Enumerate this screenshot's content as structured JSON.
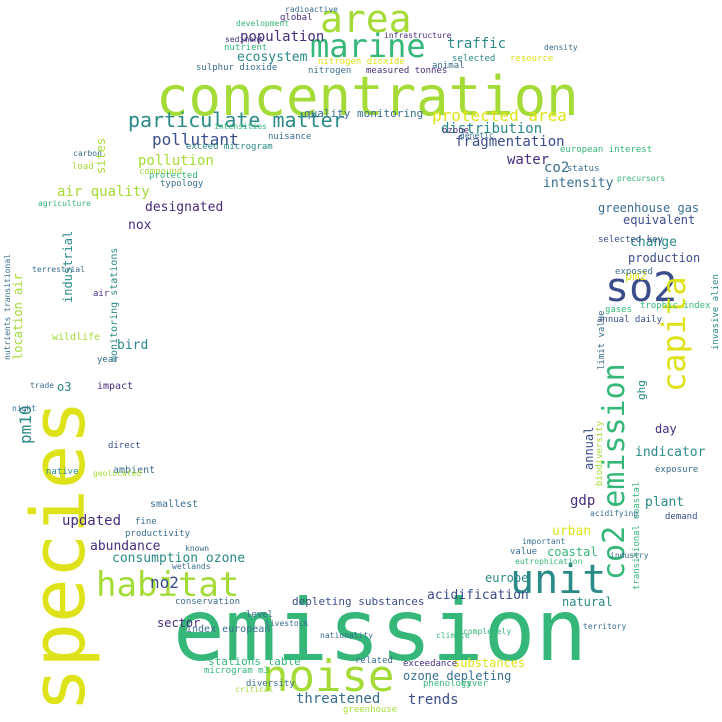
{
  "palette": {
    "dark_blue": "#3b4d8a",
    "blue": "#3a6e8f",
    "teal": "#2a8a87",
    "green": "#35b779",
    "lime": "#a5db36",
    "yellow": "#dde318",
    "purple": "#472d7b",
    "background": "#ffffff"
  },
  "words": {
    "emission": "emission",
    "concentration": "concentration",
    "species": "species",
    "marine": "marine",
    "area": "area",
    "noise": "noise",
    "unit": "unit",
    "habitat": "habitat",
    "so2": "so2",
    "co2_emission": "co2 emission",
    "capita": "capita",
    "particulate_matter": "particulate matter",
    "protected_area": "protected area",
    "population": "population",
    "traffic": "traffic",
    "ecosystem": "ecosystem",
    "pollutant": "pollutant",
    "pollution": "pollution",
    "distribution": "distribution",
    "fragmentation": "fragmentation",
    "water": "water",
    "co2": "co2",
    "intensity": "intensity",
    "air_quality": "air quality",
    "designated": "designated",
    "greenhouse_gas": "greenhouse gas",
    "equivalent": "equivalent",
    "change": "change",
    "production": "production",
    "nox": "nox",
    "industrial": "industrial",
    "sites": "sites",
    "pm10": "pm10",
    "bird": "bird",
    "o3": "o3",
    "updated": "updated",
    "abundance": "abundance",
    "consumption_ozone": "consumption ozone",
    "no2": "no2",
    "sector": "sector",
    "threatened": "threatened",
    "trends": "trends",
    "acidification": "acidification",
    "europe": "europe",
    "natural": "natural",
    "coastal": "coastal",
    "urban": "urban",
    "gdp": "gdp",
    "plant": "plant",
    "indicator": "indicator",
    "day": "day",
    "annual": "annual",
    "ghg": "ghg",
    "pm2": "pm2",
    "substances": "substances",
    "ozone_depleting": "ozone depleting",
    "depleting_substances": "depleting substances",
    "stations_table": "stations table",
    "quality_monitoring": "quality monitoring",
    "monitoring_stations": "monitoring stations",
    "location_air": "location air",
    "index_european": "index european",
    "nitrogen": "nitrogen",
    "nitrogen_dioxide": "nitrogen dioxide",
    "sulphur_dioxide": "sulphur dioxide",
    "measured_tonnes": "measured tonnes",
    "exceed_microgram": "exceed microgram",
    "global": "global",
    "nutrient": "nutrient",
    "selected": "selected",
    "resource": "resource",
    "animal": "animal",
    "european_interest": "european interest",
    "status": "status",
    "wildlife": "wildlife",
    "impact": "impact",
    "smallest": "smallest",
    "ambient": "ambient",
    "productivity": "productivity",
    "compound": "compound",
    "protected": "protected",
    "typology": "typology",
    "load": "load",
    "limit_value": "limit value",
    "exposure": "exposure",
    "demand": "demand",
    "selected_key": "selected key",
    "exposed": "exposed",
    "gases": "gases",
    "trophic_index": "trophic index",
    "annual_daily": "annual daily",
    "invasive_alien": "invasive alien",
    "biodiversity": "biodiversity",
    "transitional_coastal": "transitional coastal",
    "value": "value",
    "important": "important",
    "microgram_m3": "microgram m3",
    "level": "level",
    "conservation": "conservation",
    "river": "river",
    "phenology": "phenology",
    "exceedance": "exceedance",
    "related": "related",
    "diversity": "diversity",
    "greenhouse": "greenhouse",
    "critical": "critical",
    "native": "native",
    "year": "year",
    "air": "air",
    "nuisance": "nuisance",
    "ozone": "ozone",
    "fine": "fine",
    "known": "known",
    "direct": "direct",
    "intensities": "intensities",
    "fragment": "fragment",
    "climate": "climate",
    "territory": "territory",
    "industry": "industry",
    "genetic": "genetic",
    "eutrophication": "eutrophication",
    "sediment": "sediment",
    "development": "development",
    "radioactive": "radioactive",
    "infrastructure": "infrastructure",
    "density": "density",
    "nutrients_transitional": "nutrients transitional",
    "terrestrial": "terrestrial",
    "nationality": "nationality",
    "completely": "completely",
    "geolocated": "geolocated",
    "livestock": "livestock",
    "wetlands": "wetlands",
    "trade": "trade",
    "night": "night",
    "acidifying": "acidifying",
    "precursors": "precursors",
    "carbon": "carbon",
    "agriculture": "agriculture"
  }
}
